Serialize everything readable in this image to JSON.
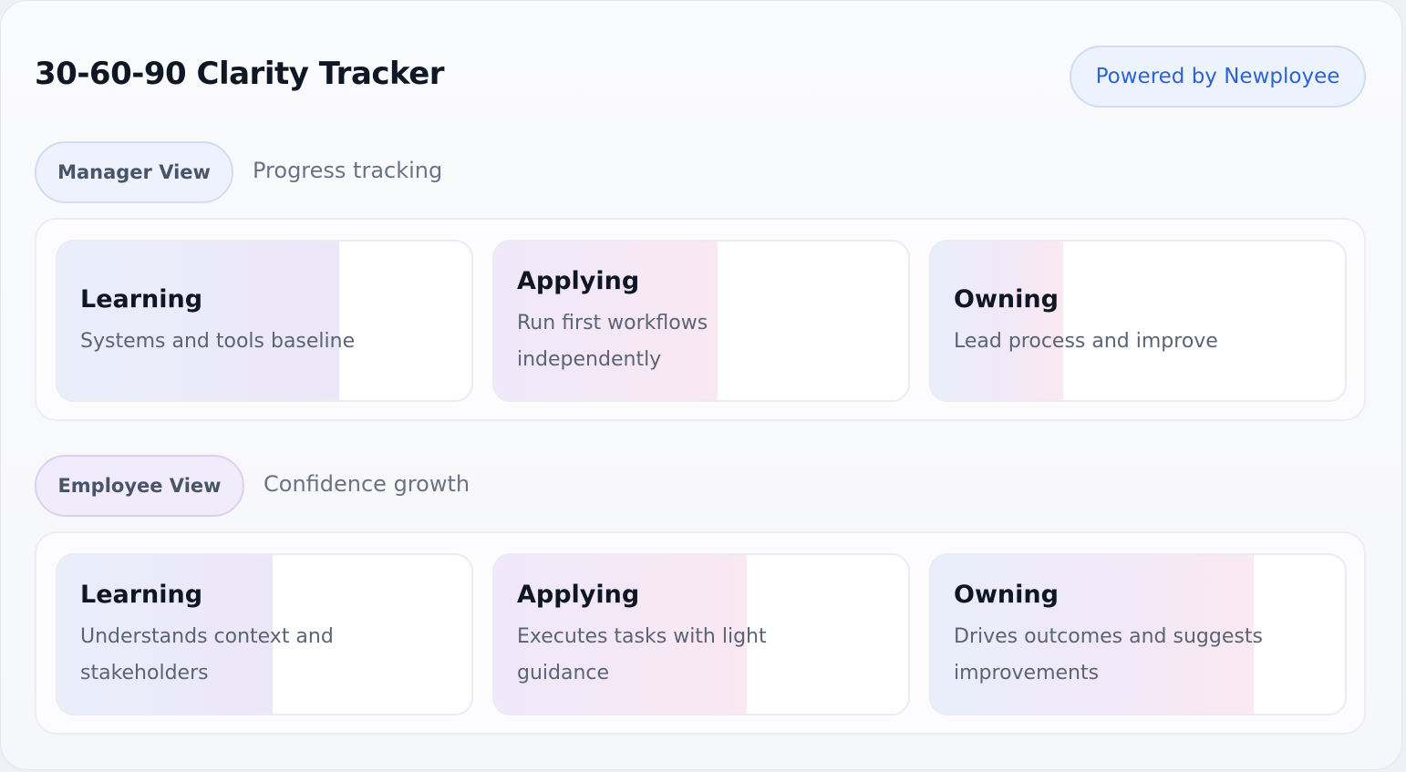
{
  "app": {
    "title": "30-60-90 Clarity Tracker",
    "powered_by": "Powered by Newployee"
  },
  "colors": {
    "accent_blue": "#2e63d0",
    "title_text": "#0f1724",
    "muted_text": "#6a7384"
  },
  "manager_view": {
    "label": "Manager View",
    "subtitle": "Progress tracking",
    "cards": [
      {
        "title": "Learning",
        "description": "Systems and tools baseline",
        "fill_fraction": 0.68
      },
      {
        "title": "Applying",
        "description": "Run first workflows independently",
        "fill_fraction": 0.54
      },
      {
        "title": "Owning",
        "description": "Lead process and improve",
        "fill_fraction": 0.32
      }
    ]
  },
  "employee_view": {
    "label": "Employee View",
    "subtitle": "Confidence growth",
    "cards": [
      {
        "title": "Learning",
        "description": "Understands context and stakeholders",
        "fill_fraction": 0.52
      },
      {
        "title": "Applying",
        "description": "Executes tasks with light guidance",
        "fill_fraction": 0.61
      },
      {
        "title": "Owning",
        "description": "Drives outcomes and suggests improvements",
        "fill_fraction": 0.78
      }
    ]
  }
}
